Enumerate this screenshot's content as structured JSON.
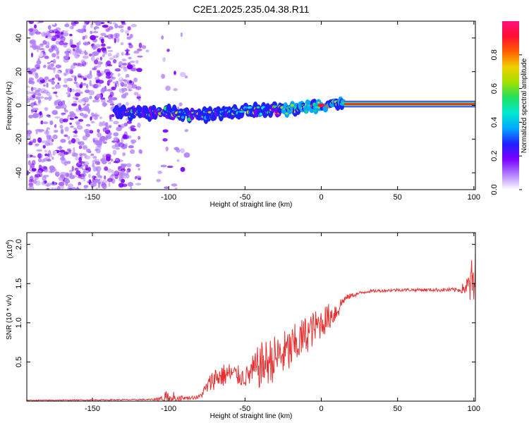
{
  "title": "C2E1.2025.235.04.38.R11",
  "chart_data": [
    {
      "type": "heatmap",
      "name": "spectrogram",
      "xlabel": "Height of straight line (km)",
      "ylabel": "Frequency (Hz)",
      "xlim": [
        -193,
        101
      ],
      "ylim": [
        -50,
        50
      ],
      "xticks": [
        -150,
        -100,
        -50,
        0,
        50,
        100
      ],
      "yticks": [
        -40,
        -20,
        0,
        20,
        40
      ],
      "colorbar": {
        "label": "Normalized spectral amplitude",
        "range": [
          0,
          1
        ],
        "ticks": [
          "0.0",
          "0.2",
          "0.4",
          "0.6",
          "0.8"
        ],
        "tick_values": [
          0.0,
          0.2,
          0.4,
          0.6,
          0.8
        ],
        "colors": [
          "#ffffff",
          "#b080ff",
          "#7a00ff",
          "#2020ff",
          "#00a8ff",
          "#00e8d0",
          "#20e060",
          "#a0e000",
          "#f0d000",
          "#ff6000",
          "#ff1030",
          "#ff1080"
        ]
      },
      "noise_region_x": [
        -193,
        -88
      ],
      "trace": {
        "x": [
          -135,
          -120,
          -110,
          -100,
          -90,
          -80,
          -70,
          -60,
          -50,
          -40,
          -30,
          -20,
          -10,
          0,
          10,
          20,
          100
        ],
        "y": [
          -4,
          -5,
          -4,
          -4,
          -5,
          -6,
          -5,
          -4,
          -3,
          -3,
          -2,
          -2,
          -1,
          0,
          0.5,
          1,
          1
        ],
        "steady_from_x": 15
      }
    },
    {
      "type": "line",
      "name": "snr",
      "xlabel": "Height of straight line (km)",
      "ylabel": "SNR (10 * v/v)",
      "multiplier": "(x10",
      "multiplier_exp": "4",
      "multiplier_close": ")",
      "xlim": [
        -193,
        101
      ],
      "ylim": [
        0,
        2.15
      ],
      "xticks": [
        -150,
        -100,
        -50,
        0,
        50,
        100
      ],
      "yticks": [
        0.5,
        1.0,
        1.5,
        2.0
      ],
      "ytick_labels": [
        "0.5",
        "1.0",
        "1.5",
        "2.0"
      ],
      "color": "#e83030",
      "envelope": {
        "x": [
          -193,
          -110,
          -100,
          -90,
          -80,
          -70,
          -60,
          -50,
          -40,
          -30,
          -20,
          -10,
          0,
          10,
          15,
          20,
          30,
          50,
          70,
          90,
          95,
          100
        ],
        "mean": [
          0.01,
          0.02,
          0.05,
          0.04,
          0.05,
          0.3,
          0.35,
          0.3,
          0.45,
          0.55,
          0.65,
          0.85,
          1.0,
          1.15,
          1.3,
          1.35,
          1.4,
          1.42,
          1.42,
          1.42,
          1.45,
          1.5
        ],
        "amplitude": [
          0.005,
          0.01,
          0.1,
          0.02,
          0.03,
          0.15,
          0.15,
          0.12,
          0.3,
          0.3,
          0.3,
          0.25,
          0.2,
          0.15,
          0.05,
          0.03,
          0.02,
          0.02,
          0.02,
          0.03,
          0.1,
          0.45
        ]
      }
    }
  ]
}
